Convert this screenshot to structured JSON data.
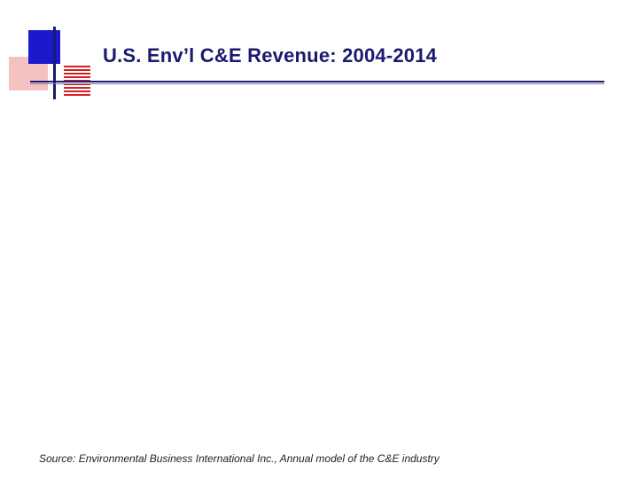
{
  "slide": {
    "title": "U.S. Env’l C&E Revenue: 2004-2014",
    "source": "Source: Environmental Business International Inc., Annual model of the C&E industry"
  },
  "decoration": {
    "blue_square_color": "#1a1acc",
    "pink_square_color": "#f5c2c2",
    "stripe_color": "#d42020",
    "line_color": "#1a1a6e"
  }
}
